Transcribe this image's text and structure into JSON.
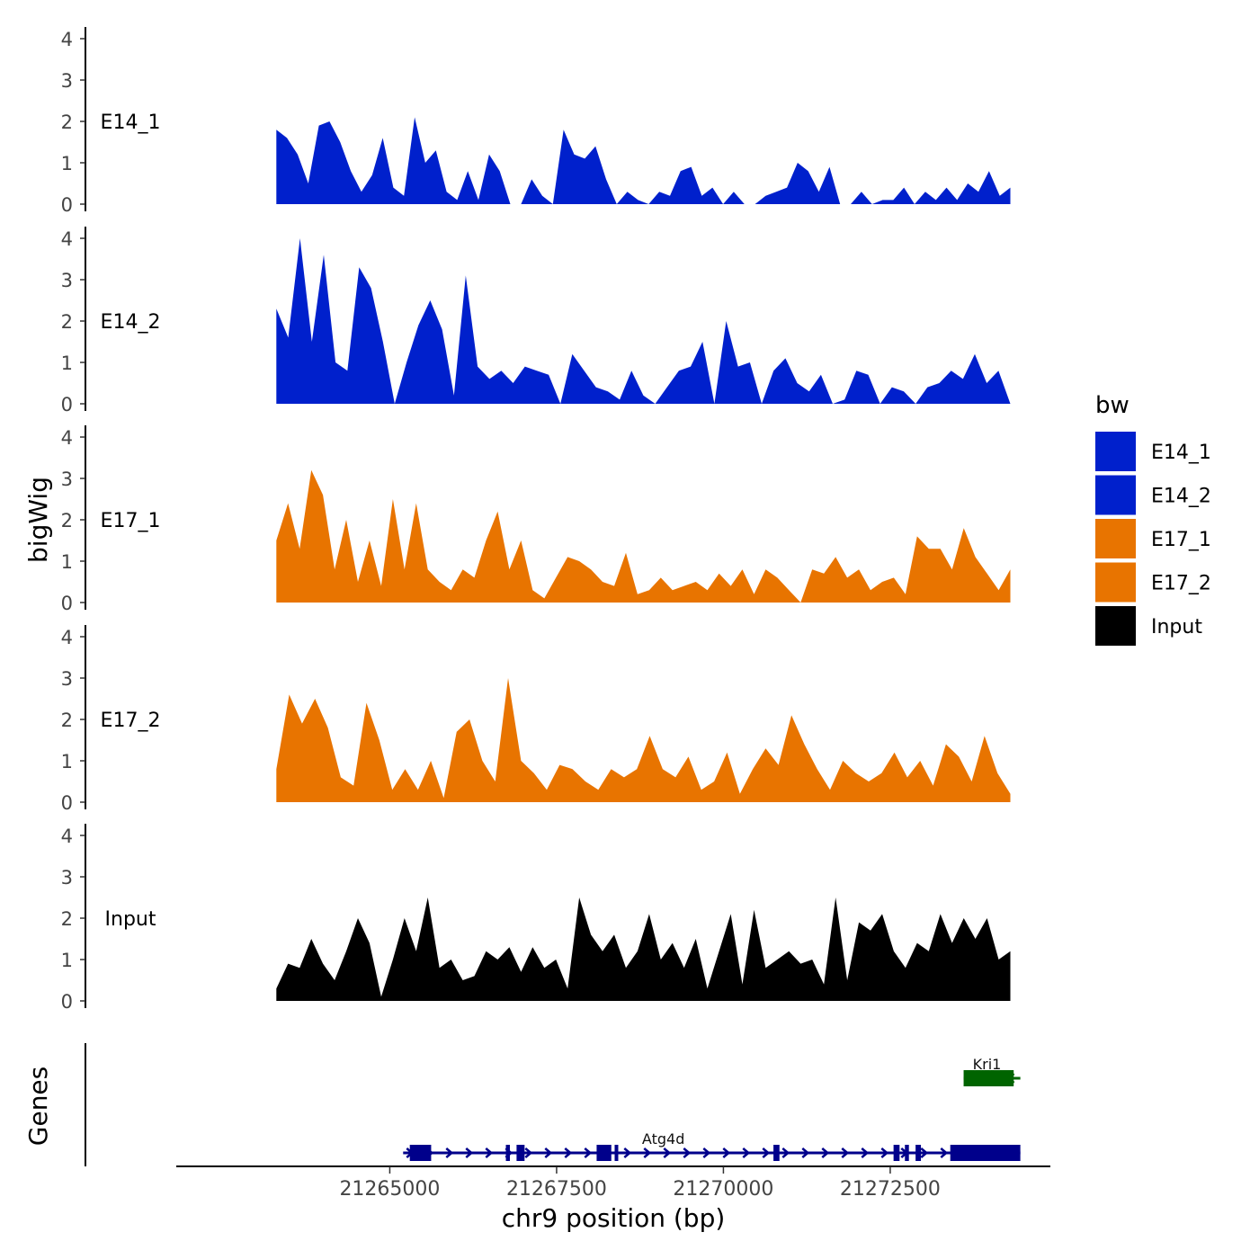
{
  "chart_data": {
    "type": "area",
    "ylabel": "bigWig",
    "xlabel": "chr9 position (bp)",
    "genes_label": "Genes",
    "x_range": [
      21261800,
      21274900
    ],
    "x_ticks": [
      21265000,
      21267500,
      21270000,
      21272500
    ],
    "x_tick_labels": [
      "21265000",
      "21267500",
      "21270000",
      "21272500"
    ],
    "ylim": [
      0,
      4.2
    ],
    "y_ticks": [
      0,
      1,
      2,
      3,
      4
    ],
    "y_tick_labels": [
      "0",
      "1",
      "2",
      "3",
      "4"
    ],
    "legend": {
      "title": "bw",
      "entries": [
        {
          "label": "E14_1",
          "color": "#0020CC"
        },
        {
          "label": "E14_2",
          "color": "#0020CC"
        },
        {
          "label": "E17_1",
          "color": "#E87400"
        },
        {
          "label": "E17_2",
          "color": "#E87400"
        },
        {
          "label": "Input",
          "color": "#000000"
        }
      ]
    },
    "tracks": [
      {
        "name": "E14_1",
        "color": "#0020CC",
        "x_start": 21263300,
        "x_end": 21274300,
        "values": [
          1.8,
          1.6,
          1.2,
          0.5,
          1.9,
          2.0,
          1.5,
          0.8,
          0.3,
          0.7,
          1.6,
          0.4,
          0.2,
          2.1,
          1.0,
          1.3,
          0.3,
          0.1,
          0.8,
          0.1,
          1.2,
          0.8,
          0,
          0,
          0.6,
          0.2,
          0,
          1.8,
          1.2,
          1.1,
          1.4,
          0.6,
          0,
          0.3,
          0.1,
          0,
          0.3,
          0.2,
          0.8,
          0.9,
          0.2,
          0.4,
          0,
          0.3,
          0,
          0,
          0.2,
          0.3,
          0.4,
          1.0,
          0.8,
          0.3,
          0.9,
          0,
          0,
          0.3,
          0,
          0.1,
          0.1,
          0.4,
          0,
          0.3,
          0.1,
          0.4,
          0.1,
          0.5,
          0.3,
          0.8,
          0.2,
          0.4
        ]
      },
      {
        "name": "E14_2",
        "color": "#0020CC",
        "x_start": 21263300,
        "x_end": 21274300,
        "values": [
          2.3,
          1.6,
          4.0,
          1.5,
          3.6,
          1.0,
          0.8,
          3.3,
          2.8,
          1.5,
          0,
          1.0,
          1.9,
          2.5,
          1.8,
          0.2,
          3.1,
          0.9,
          0.6,
          0.8,
          0.5,
          0.9,
          0.8,
          0.7,
          0,
          1.2,
          0.8,
          0.4,
          0.3,
          0.1,
          0.8,
          0.2,
          0,
          0.4,
          0.8,
          0.9,
          1.5,
          0,
          2.0,
          0.9,
          1.0,
          0,
          0.8,
          1.1,
          0.5,
          0.3,
          0.7,
          0,
          0.1,
          0.8,
          0.7,
          0,
          0.4,
          0.3,
          0,
          0.4,
          0.5,
          0.8,
          0.6,
          1.2,
          0.5,
          0.8,
          0
        ]
      },
      {
        "name": "E17_1",
        "color": "#E87400",
        "x_start": 21263300,
        "x_end": 21274300,
        "values": [
          1.5,
          2.4,
          1.3,
          3.2,
          2.6,
          0.8,
          2.0,
          0.5,
          1.5,
          0.4,
          2.5,
          0.8,
          2.4,
          0.8,
          0.5,
          0.3,
          0.8,
          0.6,
          1.5,
          2.2,
          0.8,
          1.5,
          0.3,
          0.1,
          0.6,
          1.1,
          1.0,
          0.8,
          0.5,
          0.4,
          1.2,
          0.2,
          0.3,
          0.6,
          0.3,
          0.4,
          0.5,
          0.3,
          0.7,
          0.4,
          0.8,
          0.2,
          0.8,
          0.6,
          0.3,
          0,
          0.8,
          0.7,
          1.1,
          0.6,
          0.8,
          0.3,
          0.5,
          0.6,
          0.2,
          1.6,
          1.3,
          1.3,
          0.8,
          1.8,
          1.1,
          0.7,
          0.3,
          0.8
        ]
      },
      {
        "name": "E17_2",
        "color": "#E87400",
        "x_start": 21263300,
        "x_end": 21274300,
        "values": [
          0.8,
          2.6,
          1.9,
          2.5,
          1.8,
          0.6,
          0.4,
          2.4,
          1.5,
          0.3,
          0.8,
          0.3,
          1.0,
          0.1,
          1.7,
          2.0,
          1.0,
          0.5,
          3.0,
          1.0,
          0.7,
          0.3,
          0.9,
          0.8,
          0.5,
          0.3,
          0.8,
          0.6,
          0.8,
          1.6,
          0.8,
          0.6,
          1.1,
          0.3,
          0.5,
          1.2,
          0.2,
          0.8,
          1.3,
          0.9,
          2.1,
          1.4,
          0.8,
          0.3,
          1.0,
          0.7,
          0.5,
          0.7,
          1.2,
          0.6,
          1.0,
          0.4,
          1.4,
          1.1,
          0.5,
          1.6,
          0.7,
          0.2
        ]
      },
      {
        "name": "Input",
        "color": "#000000",
        "x_start": 21263300,
        "x_end": 21274300,
        "values": [
          0.3,
          0.9,
          0.8,
          1.5,
          0.9,
          0.5,
          1.2,
          2.0,
          1.4,
          0.1,
          1.0,
          2.0,
          1.2,
          2.5,
          0.8,
          1.0,
          0.5,
          0.6,
          1.2,
          1.0,
          1.3,
          0.7,
          1.3,
          0.8,
          1.0,
          0.3,
          2.5,
          1.6,
          1.2,
          1.6,
          0.8,
          1.2,
          2.1,
          1.0,
          1.4,
          0.8,
          1.5,
          0.3,
          1.2,
          2.1,
          0.4,
          2.2,
          0.8,
          1.0,
          1.2,
          0.9,
          1.0,
          0.4,
          2.5,
          0.5,
          1.9,
          1.7,
          2.1,
          1.2,
          0.8,
          1.4,
          1.2,
          2.1,
          1.4,
          2.0,
          1.5,
          2.0,
          1.0,
          1.2
        ]
      }
    ],
    "genes": [
      {
        "name": "Kri1",
        "color": "#006400",
        "strand": "-",
        "start": 21273600,
        "end": 21274450,
        "row": 1,
        "exons": [
          [
            21273600,
            21274350
          ]
        ]
      },
      {
        "name": "Atg4d",
        "color": "#00008B",
        "strand": "+",
        "start": 21265200,
        "end": 21274450,
        "row": 0,
        "exons": [
          [
            21265300,
            21265620
          ],
          [
            21266740,
            21266800
          ],
          [
            21266900,
            21267020
          ],
          [
            21268100,
            21268320
          ],
          [
            21268370,
            21268410
          ],
          [
            21270750,
            21270840
          ],
          [
            21272550,
            21272640
          ],
          [
            21272720,
            21272780
          ],
          [
            21272880,
            21272960
          ],
          [
            21273400,
            21274450
          ]
        ]
      }
    ]
  }
}
